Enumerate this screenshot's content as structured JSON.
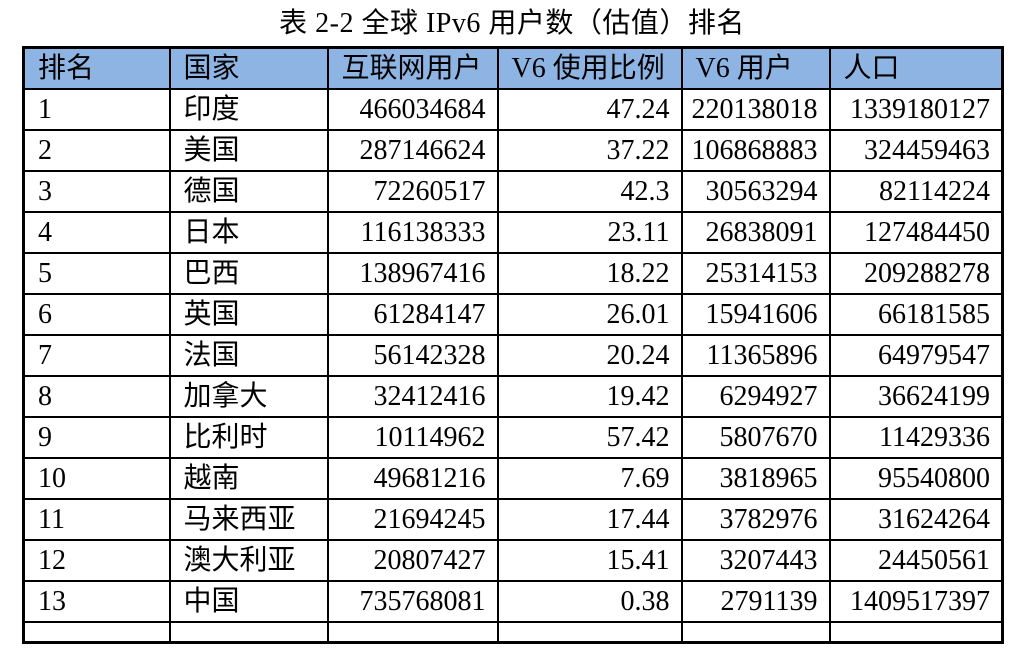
{
  "title": "表 2-2  全球 IPv6 用户数（估值）排名",
  "table": {
    "header_bg": "#8eb4e3",
    "border_color": "#000000",
    "headers": [
      "排名",
      "国家",
      "互联网用户",
      "V6 使用比例",
      "V6 用户",
      "人口"
    ],
    "rows": [
      [
        "1",
        "印度",
        "466034684",
        "47.24",
        "220138018",
        "1339180127"
      ],
      [
        "2",
        "美国",
        "287146624",
        "37.22",
        "106868883",
        "324459463"
      ],
      [
        "3",
        "德国",
        "72260517",
        "42.3",
        "30563294",
        "82114224"
      ],
      [
        "4",
        "日本",
        "116138333",
        "23.11",
        "26838091",
        "127484450"
      ],
      [
        "5",
        "巴西",
        "138967416",
        "18.22",
        "25314153",
        "209288278"
      ],
      [
        "6",
        "英国",
        "61284147",
        "26.01",
        "15941606",
        "66181585"
      ],
      [
        "7",
        "法国",
        "56142328",
        "20.24",
        "11365896",
        "64979547"
      ],
      [
        "8",
        "加拿大",
        "32412416",
        "19.42",
        "6294927",
        "36624199"
      ],
      [
        "9",
        "比利时",
        "10114962",
        "57.42",
        "5807670",
        "11429336"
      ],
      [
        "10",
        "越南",
        "49681216",
        "7.69",
        "3818965",
        "95540800"
      ],
      [
        "11",
        "马来西亚",
        "21694245",
        "17.44",
        "3782976",
        "31624264"
      ],
      [
        "12",
        "澳大利亚",
        "20807427",
        "15.41",
        "3207443",
        "24450561"
      ],
      [
        "13",
        "中国",
        "735768081",
        "0.38",
        "2791139",
        "1409517397"
      ]
    ]
  }
}
